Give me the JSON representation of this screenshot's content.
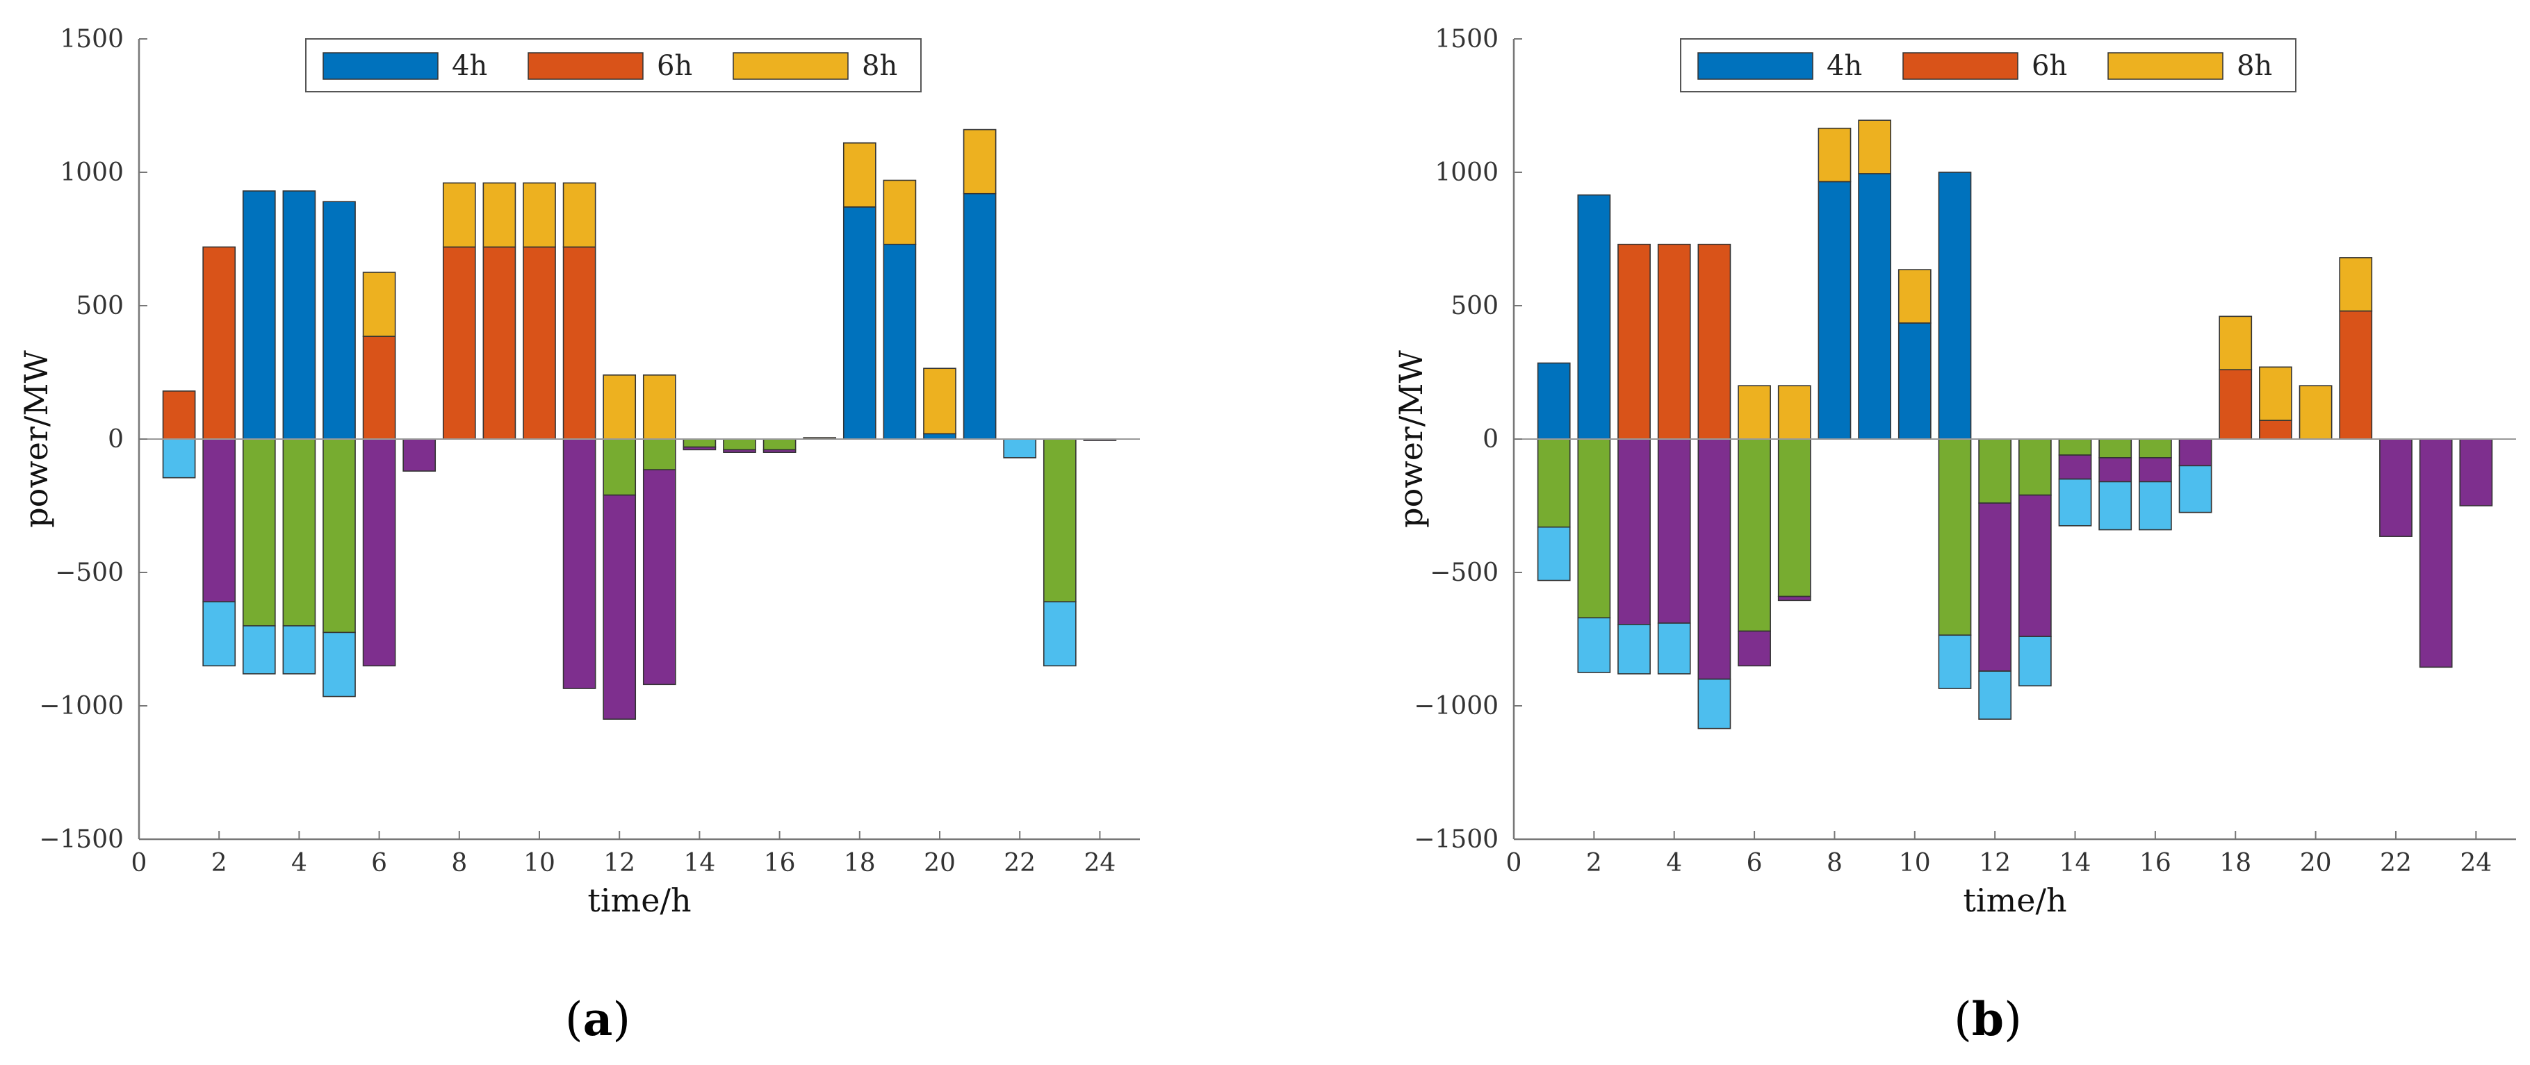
{
  "colors": {
    "h4": "#0072BD",
    "h6": "#D95319",
    "h8": "#EDB120",
    "green": "#77AC30",
    "purple": "#7E2F8E",
    "lightblue": "#4DBEEE"
  },
  "panels": [
    {
      "open": "(",
      "letter": "a",
      "close": ")"
    },
    {
      "open": "(",
      "letter": "b",
      "close": ")"
    }
  ],
  "chart_data": [
    {
      "type": "bar",
      "title": "",
      "xlabel": "time/h",
      "ylabel": "power/MW",
      "xlim": [
        0,
        25
      ],
      "ylim": [
        -1500,
        1500
      ],
      "xticks": [
        0,
        2,
        4,
        6,
        8,
        10,
        12,
        14,
        16,
        18,
        20,
        22,
        24
      ],
      "yticks": [
        -1500,
        -1000,
        -500,
        0,
        500,
        1000,
        1500
      ],
      "legend": [
        "4h",
        "6h",
        "8h"
      ],
      "legend_position": "top-center",
      "categories": [
        1,
        2,
        3,
        4,
        5,
        6,
        7,
        8,
        9,
        10,
        11,
        12,
        13,
        14,
        15,
        16,
        17,
        18,
        19,
        20,
        21,
        22,
        23,
        24
      ],
      "positive_series": [
        {
          "name": "4h",
          "color_key": "h4",
          "values": [
            0,
            0,
            930,
            930,
            890,
            0,
            0,
            0,
            0,
            0,
            0,
            0,
            0,
            0,
            0,
            0,
            0,
            870,
            730,
            20,
            920,
            0,
            0,
            0
          ]
        },
        {
          "name": "6h",
          "color_key": "h6",
          "values": [
            180,
            720,
            0,
            0,
            0,
            385,
            0,
            720,
            720,
            720,
            720,
            0,
            0,
            0,
            0,
            0,
            0,
            0,
            0,
            0,
            0,
            0,
            0,
            0
          ]
        },
        {
          "name": "8h",
          "color_key": "h8",
          "values": [
            0,
            0,
            0,
            0,
            0,
            240,
            0,
            240,
            240,
            240,
            240,
            240,
            240,
            0,
            0,
            0,
            5,
            240,
            240,
            245,
            240,
            0,
            0,
            0
          ]
        }
      ],
      "negative_series": [
        {
          "name": "green",
          "color_key": "green",
          "values": [
            0,
            0,
            -700,
            -700,
            -725,
            0,
            0,
            0,
            0,
            0,
            0,
            -210,
            -115,
            -30,
            -40,
            -40,
            0,
            0,
            0,
            0,
            0,
            0,
            -610,
            0
          ]
        },
        {
          "name": "purple",
          "color_key": "purple",
          "values": [
            0,
            -610,
            0,
            0,
            0,
            -850,
            -120,
            0,
            0,
            0,
            -935,
            -840,
            -805,
            -10,
            -10,
            -10,
            0,
            0,
            0,
            0,
            0,
            0,
            0,
            -5
          ]
        },
        {
          "name": "lightblue",
          "color_key": "lightblue",
          "values": [
            -145,
            -240,
            -180,
            -180,
            -240,
            0,
            0,
            0,
            0,
            0,
            0,
            0,
            0,
            0,
            0,
            0,
            0,
            0,
            0,
            0,
            0,
            -70,
            -240,
            0
          ]
        }
      ]
    },
    {
      "type": "bar",
      "title": "",
      "xlabel": "time/h",
      "ylabel": "power/MW",
      "xlim": [
        0,
        25
      ],
      "ylim": [
        -1500,
        1500
      ],
      "xticks": [
        0,
        2,
        4,
        6,
        8,
        10,
        12,
        14,
        16,
        18,
        20,
        22,
        24
      ],
      "yticks": [
        -1500,
        -1000,
        -500,
        0,
        500,
        1000,
        1500
      ],
      "legend": [
        "4h",
        "6h",
        "8h"
      ],
      "legend_position": "top-center",
      "categories": [
        1,
        2,
        3,
        4,
        5,
        6,
        7,
        8,
        9,
        10,
        11,
        12,
        13,
        14,
        15,
        16,
        17,
        18,
        19,
        20,
        21,
        22,
        23,
        24
      ],
      "positive_series": [
        {
          "name": "4h",
          "color_key": "h4",
          "values": [
            285,
            915,
            0,
            0,
            0,
            0,
            0,
            965,
            995,
            435,
            1000,
            0,
            0,
            0,
            0,
            0,
            0,
            0,
            0,
            0,
            0,
            0,
            0,
            0
          ]
        },
        {
          "name": "6h",
          "color_key": "h6",
          "values": [
            0,
            0,
            730,
            730,
            730,
            0,
            0,
            0,
            0,
            0,
            0,
            0,
            0,
            0,
            0,
            0,
            0,
            260,
            70,
            0,
            480,
            0,
            0,
            0
          ]
        },
        {
          "name": "8h",
          "color_key": "h8",
          "values": [
            0,
            0,
            0,
            0,
            0,
            200,
            200,
            200,
            200,
            200,
            0,
            0,
            0,
            0,
            0,
            0,
            0,
            200,
            200,
            200,
            200,
            0,
            0,
            0
          ]
        }
      ],
      "negative_series": [
        {
          "name": "green",
          "color_key": "green",
          "values": [
            -330,
            -670,
            0,
            0,
            0,
            -720,
            -590,
            0,
            0,
            0,
            -735,
            -240,
            -210,
            -60,
            -70,
            -70,
            0,
            0,
            0,
            0,
            0,
            0,
            0,
            0
          ]
        },
        {
          "name": "purple",
          "color_key": "purple",
          "values": [
            0,
            0,
            -695,
            -690,
            -900,
            -130,
            -15,
            0,
            0,
            0,
            0,
            -630,
            -530,
            -90,
            -90,
            -90,
            -100,
            0,
            0,
            0,
            0,
            -365,
            -855,
            -250
          ]
        },
        {
          "name": "lightblue",
          "color_key": "lightblue",
          "values": [
            -200,
            -205,
            -185,
            -190,
            -185,
            0,
            0,
            0,
            0,
            0,
            -200,
            -180,
            -185,
            -175,
            -180,
            -180,
            -175,
            0,
            0,
            0,
            0,
            0,
            0,
            0
          ]
        }
      ]
    }
  ]
}
